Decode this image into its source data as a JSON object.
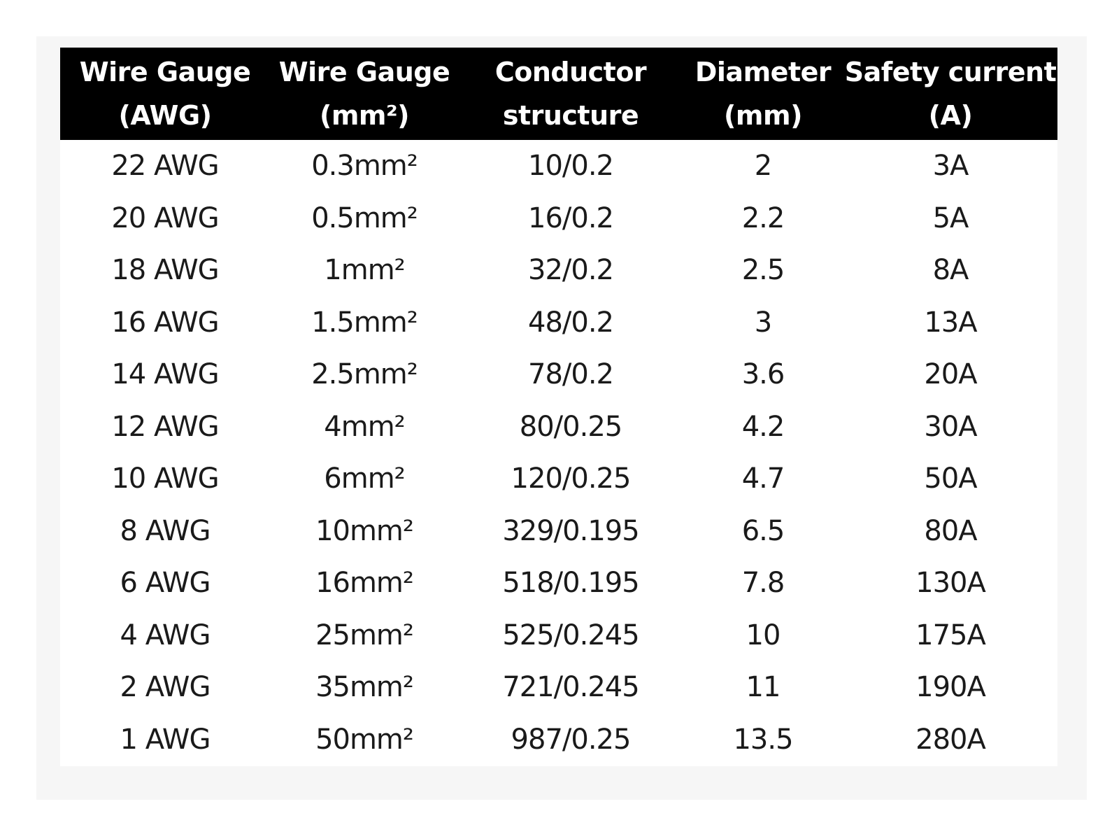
{
  "table": {
    "headers": [
      {
        "line1": "Wire Gauge",
        "line2": "(AWG)"
      },
      {
        "line1": "Wire Gauge",
        "line2": "(mm²)"
      },
      {
        "line1": "Conductor",
        "line2": "structure"
      },
      {
        "line1": "Diameter",
        "line2": "(mm)"
      },
      {
        "line1": "Safety current",
        "line2": "(A)"
      }
    ],
    "rows": [
      [
        "22 AWG",
        "0.3mm²",
        "10/0.2",
        "2",
        "3A"
      ],
      [
        "20 AWG",
        "0.5mm²",
        "16/0.2",
        "2.2",
        "5A"
      ],
      [
        "18 AWG",
        "1mm²",
        "32/0.2",
        "2.5",
        "8A"
      ],
      [
        "16 AWG",
        "1.5mm²",
        "48/0.2",
        "3",
        "13A"
      ],
      [
        "14 AWG",
        "2.5mm²",
        "78/0.2",
        "3.6",
        "20A"
      ],
      [
        "12 AWG",
        "4mm²",
        "80/0.25",
        "4.2",
        "30A"
      ],
      [
        "10 AWG",
        "6mm²",
        "120/0.25",
        "4.7",
        "50A"
      ],
      [
        "8 AWG",
        "10mm²",
        "329/0.195",
        "6.5",
        "80A"
      ],
      [
        "6 AWG",
        "16mm²",
        "518/0.195",
        "7.8",
        "130A"
      ],
      [
        "4 AWG",
        "25mm²",
        "525/0.245",
        "10",
        "175A"
      ],
      [
        "2 AWG",
        "35mm²",
        "721/0.245",
        "11",
        "190A"
      ],
      [
        "1 AWG",
        "50mm²",
        "987/0.25",
        "13.5",
        "280A"
      ]
    ]
  },
  "colors": {
    "header_background": "#000000",
    "header_text": "#ffffff",
    "body_text": "#1a1a1a",
    "frame_background": "#f6f6f6"
  }
}
